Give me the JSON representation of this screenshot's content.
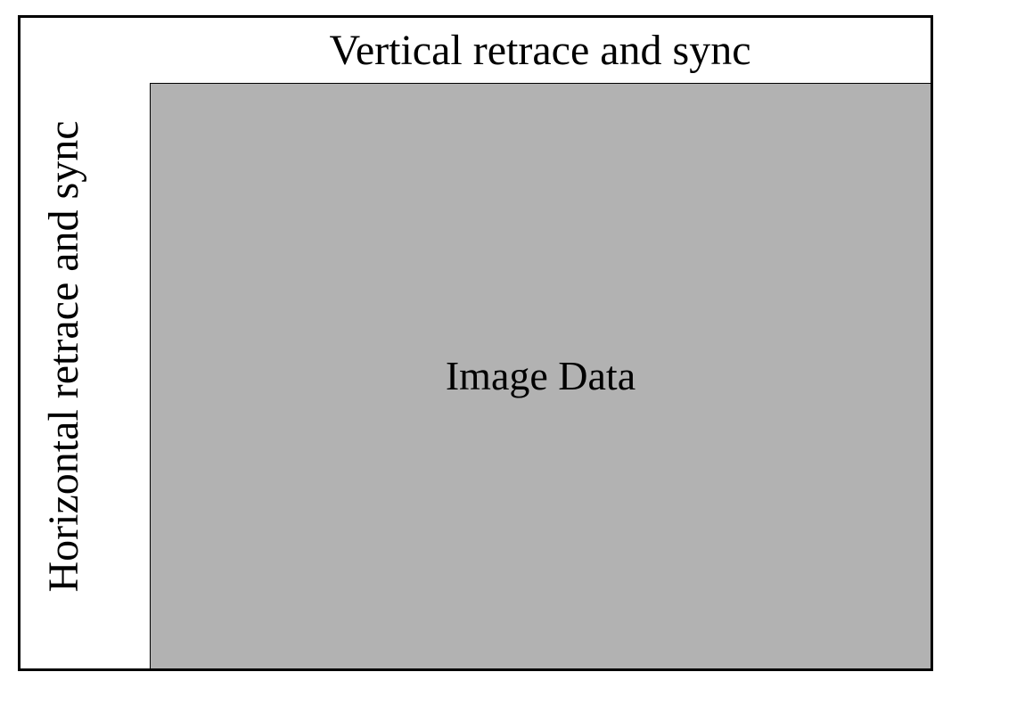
{
  "diagram": {
    "vertical_region_label": "Vertical retrace and sync",
    "horizontal_region_label": "Horizontal retrace and sync",
    "image_region_label": "Image Data"
  },
  "colors": {
    "border": "#000000",
    "background": "#ffffff",
    "image_region_fill": "#b2b2b2"
  }
}
